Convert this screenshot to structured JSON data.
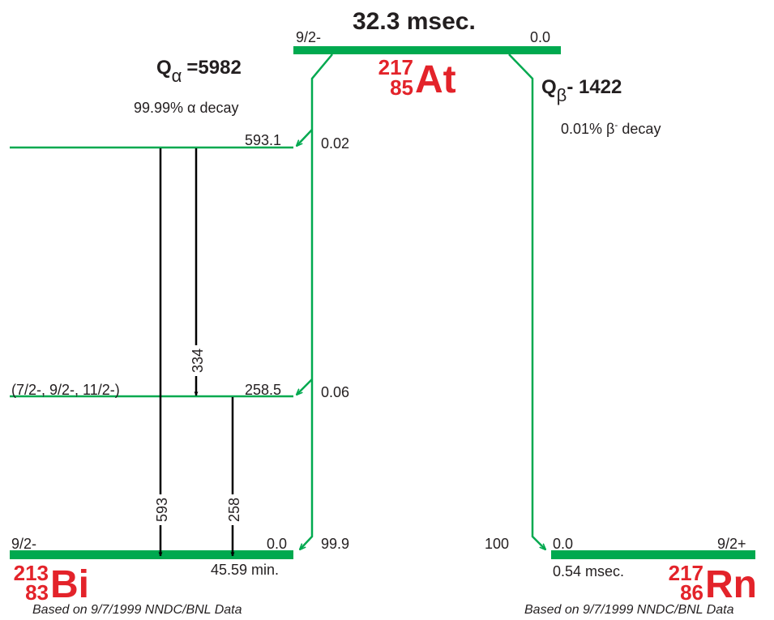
{
  "parent": {
    "halflife": "32.3 msec.",
    "spin": "9/2-",
    "energy": "0.0",
    "nuclide": {
      "mass": "217",
      "z": "85",
      "symbol": "At"
    }
  },
  "alpha": {
    "q_symbol": "Q",
    "q_sub": "α",
    "q_value": "=5982",
    "branch": "99.99% α decay"
  },
  "beta": {
    "q_symbol": "Q",
    "q_sub": "β",
    "q_value": "- 1422",
    "branch_pct": "0.01% β",
    "branch_sup": "-",
    "branch_word": " decay"
  },
  "alpha_daughter": {
    "levels": [
      {
        "energy": "593.1",
        "intensity": "0.02",
        "spin": ""
      },
      {
        "energy": "258.5",
        "intensity": "0.06",
        "spin": "(7/2-, 9/2-, 11/2-)"
      },
      {
        "energy": "0.0",
        "intensity": "99.9",
        "spin": "9/2-"
      }
    ],
    "gammas": [
      "593",
      "334",
      "258"
    ],
    "halflife": "45.59 min.",
    "nuclide": {
      "mass": "213",
      "z": "83",
      "symbol": "Bi"
    }
  },
  "beta_daughter": {
    "energy": "0.0",
    "spin": "9/2+",
    "intensity": "100",
    "halflife": "0.54 msec.",
    "nuclide": {
      "mass": "217",
      "z": "86",
      "symbol": "Rn"
    }
  },
  "credit": "Based on 9/7/1999 NNDC/BNL Data",
  "colors": {
    "level": "#00a94f",
    "label": "#e3232a",
    "gamma": "#000000",
    "text": "#231f20"
  }
}
